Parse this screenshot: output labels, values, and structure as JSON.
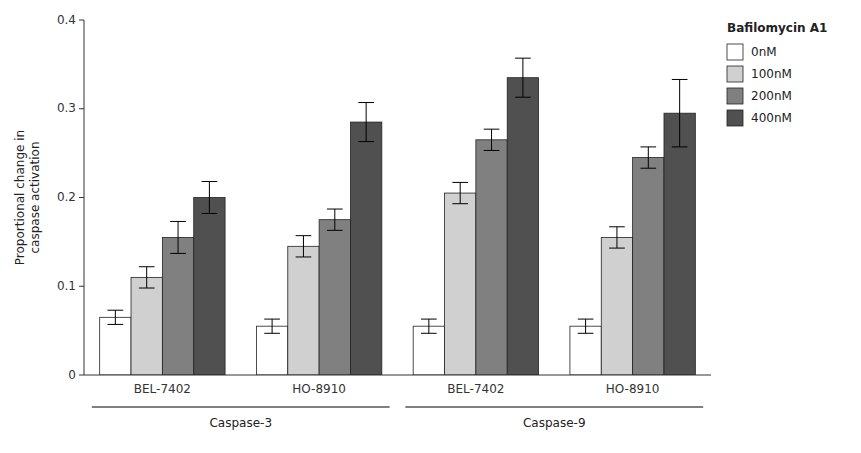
{
  "chart_data": {
    "type": "bar",
    "ylabel": "Proportional change in\ncaspase activation",
    "categories": [
      "BEL-7402",
      "HO-8910",
      "BEL-7402",
      "HO-8910"
    ],
    "annotations": [
      "Caspase-3",
      "Caspase-9"
    ],
    "legend_title": "Bafilomycin A1",
    "series": [
      {
        "name": "0nM",
        "color": "#ffffff",
        "values": [
          0.065,
          0.055,
          0.055,
          0.055
        ],
        "errors": [
          0.008,
          0.008,
          0.008,
          0.008
        ]
      },
      {
        "name": "100nM",
        "color": "#d0d0d0",
        "values": [
          0.11,
          0.145,
          0.205,
          0.155
        ],
        "errors": [
          0.012,
          0.012,
          0.012,
          0.012
        ]
      },
      {
        "name": "200nM",
        "color": "#808080",
        "values": [
          0.155,
          0.175,
          0.265,
          0.245
        ],
        "errors": [
          0.018,
          0.012,
          0.012,
          0.012
        ]
      },
      {
        "name": "400nM",
        "color": "#505050",
        "values": [
          0.2,
          0.285,
          0.335,
          0.295
        ],
        "errors": [
          0.018,
          0.022,
          0.022,
          0.038
        ]
      }
    ],
    "ylim": [
      0,
      0.4
    ],
    "yticks": [
      0,
      0.1,
      0.2,
      0.3,
      0.4
    ],
    "grid": false,
    "legend": "upper right"
  }
}
